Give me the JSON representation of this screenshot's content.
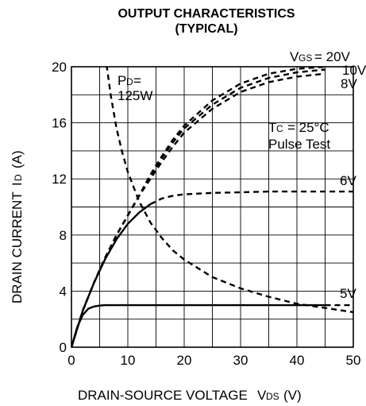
{
  "chart_data": {
    "type": "line",
    "title": "OUTPUT CHARACTERISTICS",
    "subtitle": "(TYPICAL)",
    "xlabel": "DRAIN-SOURCE VOLTAGE   VDS (V)",
    "ylabel": "DRAIN CURRENT   ID (A)",
    "xlim": [
      0,
      50
    ],
    "ylim": [
      0,
      20
    ],
    "x_ticks": [
      "0",
      "10",
      "20",
      "30",
      "40",
      "50"
    ],
    "y_ticks": [
      "0",
      "4",
      "8",
      "12",
      "16",
      "20"
    ],
    "grid": true,
    "conditions": [
      "Tc = 25°C",
      "Pulse Test"
    ],
    "pd_label": [
      "PD=",
      "125W"
    ],
    "series": [
      {
        "name": "VGS = 20V",
        "style": "dashed",
        "x": [
          0,
          2,
          4,
          6,
          8,
          10,
          12,
          14,
          16,
          18,
          20,
          25,
          30,
          35,
          40,
          45
        ],
        "y": [
          0,
          2.6,
          4.6,
          6.4,
          8.0,
          9.4,
          10.8,
          12.3,
          13.6,
          14.8,
          15.8,
          17.6,
          18.8,
          19.5,
          19.85,
          20.0
        ]
      },
      {
        "name": "10V",
        "style": "dashed",
        "x": [
          0,
          2,
          4,
          6,
          8,
          10,
          12,
          14,
          16,
          18,
          20,
          25,
          30,
          35,
          40,
          45
        ],
        "y": [
          0,
          2.6,
          4.6,
          6.4,
          8.0,
          9.4,
          10.8,
          12.2,
          13.45,
          14.6,
          15.6,
          17.3,
          18.5,
          19.2,
          19.6,
          19.8
        ]
      },
      {
        "name": "8V",
        "style": "dashed",
        "x": [
          0,
          2,
          4,
          6,
          8,
          10,
          12,
          14,
          16,
          18,
          20,
          25,
          30,
          35,
          40,
          45
        ],
        "y": [
          0,
          2.6,
          4.6,
          6.4,
          8.0,
          9.4,
          10.8,
          12.0,
          13.2,
          14.3,
          15.3,
          17.0,
          18.2,
          18.9,
          19.3,
          19.5
        ]
      },
      {
        "name": "6V",
        "style": "solid_then_dashed",
        "x": [
          0,
          2,
          4,
          6,
          8,
          10,
          12,
          14,
          16,
          18,
          20,
          25,
          30,
          35,
          40,
          45,
          50
        ],
        "y": [
          0,
          2.6,
          4.6,
          6.3,
          7.7,
          8.8,
          9.6,
          10.2,
          10.6,
          10.8,
          10.9,
          11.0,
          11.05,
          11.1,
          11.1,
          11.1,
          11.1
        ]
      },
      {
        "name": "5V",
        "style": "solid_then_dashed",
        "x": [
          0,
          1,
          2,
          3,
          4,
          5,
          6,
          8,
          10,
          20,
          30,
          40,
          45,
          50
        ],
        "y": [
          0,
          1.4,
          2.3,
          2.75,
          2.9,
          2.97,
          3.0,
          3.0,
          3.0,
          3.0,
          3.0,
          3.0,
          3.0,
          3.0
        ]
      },
      {
        "name": "PD = 125W",
        "style": "dashed",
        "x": [
          6,
          7,
          8,
          9,
          10,
          12,
          14,
          16,
          18,
          20,
          25,
          30,
          35,
          40,
          45,
          50
        ],
        "y": [
          20.8,
          17.9,
          15.6,
          13.9,
          12.5,
          10.4,
          8.9,
          7.8,
          6.9,
          6.25,
          5.0,
          4.2,
          3.6,
          3.1,
          2.8,
          2.5
        ]
      }
    ]
  }
}
